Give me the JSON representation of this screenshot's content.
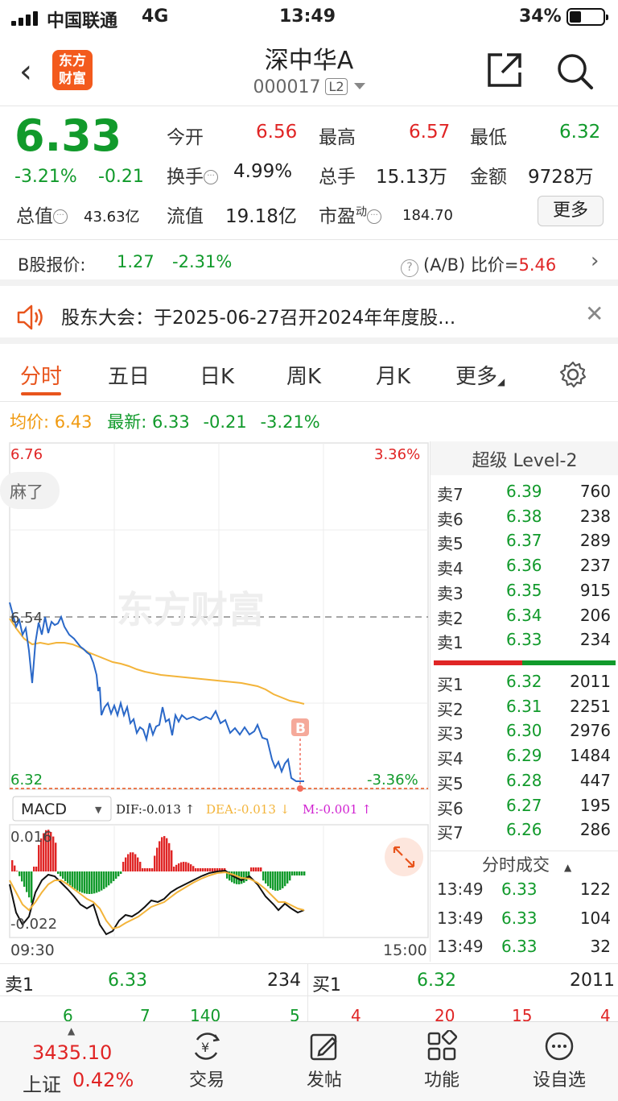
{
  "status_bar": {
    "carrier": "中国联通",
    "network": "4G",
    "time": "13:49",
    "battery": "34%"
  },
  "header": {
    "logo_text": "东方财富",
    "title": "深中华A",
    "code": "000017",
    "level_badge": "L2"
  },
  "quote": {
    "price": "6.33",
    "change_pct": "-3.21%",
    "change_val": "-0.21",
    "open_label": "今开",
    "open": "6.56",
    "high_label": "最高",
    "high": "6.57",
    "low_label": "最低",
    "low": "6.32",
    "turnover_label": "换手",
    "turnover": "4.99%",
    "volume_label": "总手",
    "volume": "15.13万",
    "amount_label": "金额",
    "amount": "9728万",
    "total_cap_label": "总值",
    "total_cap": "43.63亿",
    "float_cap_label": "流值",
    "float_cap": "19.18亿",
    "pe_label": "市盈",
    "pe_sup": "动",
    "pe": "184.70",
    "more_label": "更多"
  },
  "b_share": {
    "label": "B股报价:",
    "price": "1.27",
    "change": "-2.31%",
    "ratio_label": "(A/B) 比价=",
    "ratio": "5.46"
  },
  "notice": {
    "text": "股东大会：于2025-06-27召开2024年年度股..."
  },
  "tabs": [
    {
      "label": "分时",
      "active": true
    },
    {
      "label": "五日"
    },
    {
      "label": "日K"
    },
    {
      "label": "周K"
    },
    {
      "label": "月K"
    },
    {
      "label": "更多"
    }
  ],
  "avg_row": {
    "avg_label": "均价:",
    "avg": "6.43",
    "latest_label": "最新:",
    "latest": "6.33",
    "chg": "-0.21",
    "pct": "-3.21%"
  },
  "chart": {
    "top_price": "6.76",
    "top_pct": "3.36%",
    "mid_price": "6.54",
    "bottom_price": "6.32",
    "bottom_pct": "-3.36%",
    "overlay_text": "麻了",
    "watermark": "东方财富",
    "marker": "B",
    "time_start": "09:30",
    "time_end": "15:00",
    "macd_label": "MACD",
    "dif": "DIF:-0.013 ↑",
    "dea": "DEA:-0.013 ↓",
    "m": "M:-0.001 ↑",
    "macd_top": "0.016",
    "macd_bottom": "-0.022",
    "colors": {
      "price_line": "#2a68c8",
      "avg_line": "#f3b43a",
      "up": "#e02525",
      "down": "#119a2b"
    }
  },
  "order_book": {
    "title": "超级 Level-2",
    "asks": [
      {
        "label": "卖7",
        "price": "6.39",
        "vol": "760"
      },
      {
        "label": "卖6",
        "price": "6.38",
        "vol": "238"
      },
      {
        "label": "卖5",
        "price": "6.37",
        "vol": "289"
      },
      {
        "label": "卖4",
        "price": "6.36",
        "vol": "237"
      },
      {
        "label": "卖3",
        "price": "6.35",
        "vol": "915"
      },
      {
        "label": "卖2",
        "price": "6.34",
        "vol": "206"
      },
      {
        "label": "卖1",
        "price": "6.33",
        "vol": "234"
      }
    ],
    "bids": [
      {
        "label": "买1",
        "price": "6.32",
        "vol": "2011"
      },
      {
        "label": "买2",
        "price": "6.31",
        "vol": "2251"
      },
      {
        "label": "买3",
        "price": "6.30",
        "vol": "2976"
      },
      {
        "label": "买4",
        "price": "6.29",
        "vol": "1484"
      },
      {
        "label": "买5",
        "price": "6.28",
        "vol": "447"
      },
      {
        "label": "买6",
        "price": "6.27",
        "vol": "195"
      },
      {
        "label": "买7",
        "price": "6.26",
        "vol": "286"
      }
    ],
    "ticks_title": "分时成交",
    "ticks": [
      {
        "time": "13:49",
        "price": "6.33",
        "vol": "122"
      },
      {
        "time": "13:49",
        "price": "6.33",
        "vol": "104"
      },
      {
        "time": "13:49",
        "price": "6.33",
        "vol": "32"
      }
    ]
  },
  "bottom_bar": {
    "ask_label": "卖1",
    "ask_price": "6.33",
    "ask_vol": "234",
    "bid_label": "买1",
    "bid_price": "6.32",
    "bid_vol": "2011",
    "row2_left": [
      "6",
      "7",
      "140",
      "5"
    ],
    "row2_right": [
      "4",
      "20",
      "15",
      "4"
    ]
  },
  "nav": {
    "index_value": "3435.10",
    "index_name": "上证",
    "index_pct": "0.42%",
    "items": [
      {
        "label": "交易"
      },
      {
        "label": "发帖"
      },
      {
        "label": "功能"
      },
      {
        "label": "设自选"
      }
    ]
  }
}
